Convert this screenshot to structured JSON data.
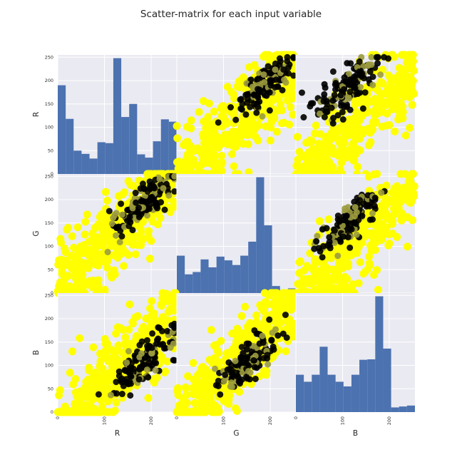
{
  "chart_data": {
    "type": "scatter",
    "title": "Scatter-matrix for each input variable",
    "variables": [
      "R",
      "G",
      "B"
    ],
    "axis_range": [
      0,
      255
    ],
    "tick_values": [
      0,
      100,
      200
    ],
    "y_tick_values": [
      0,
      50,
      100,
      150,
      200,
      250
    ],
    "grid": true,
    "colors": {
      "panel_bg": "#eaeaf2",
      "grid": "#ffffff",
      "hist": "#4c72b0",
      "point_main": "#ffff00",
      "point_dark": "#000000",
      "point_overlap": "#9b9b3e"
    },
    "histograms": {
      "R": {
        "bins": [
          0,
          17,
          34,
          51,
          68,
          85,
          102,
          119,
          136,
          153,
          170,
          187,
          204,
          221,
          238,
          255
        ],
        "counts": [
          190,
          118,
          50,
          43,
          33,
          68,
          66,
          248,
          122,
          150,
          42,
          35,
          70,
          117,
          112
        ]
      },
      "G": {
        "bins": [
          0,
          17,
          34,
          51,
          68,
          85,
          102,
          119,
          136,
          153,
          170,
          187,
          204,
          221,
          238,
          255
        ],
        "counts": [
          80,
          40,
          45,
          72,
          55,
          78,
          70,
          60,
          80,
          110,
          248,
          145,
          15,
          2,
          10
        ]
      },
      "B": {
        "bins": [
          0,
          17,
          34,
          51,
          68,
          85,
          102,
          119,
          136,
          153,
          170,
          187,
          204,
          221,
          238,
          255
        ],
        "counts": [
          80,
          65,
          80,
          140,
          80,
          65,
          55,
          80,
          112,
          113,
          248,
          136,
          10,
          12,
          14
        ]
      }
    },
    "scatter_relations": {
      "G_vs_R": "dense positive band along the diagonal with dark cluster near R 130-240, G 130-240",
      "B_vs_R": "dense positive band with dark cluster near R 120-250, B 30-180",
      "B_vs_G": "dense positive band with dark cluster near G 80-200, B 30-190"
    }
  }
}
